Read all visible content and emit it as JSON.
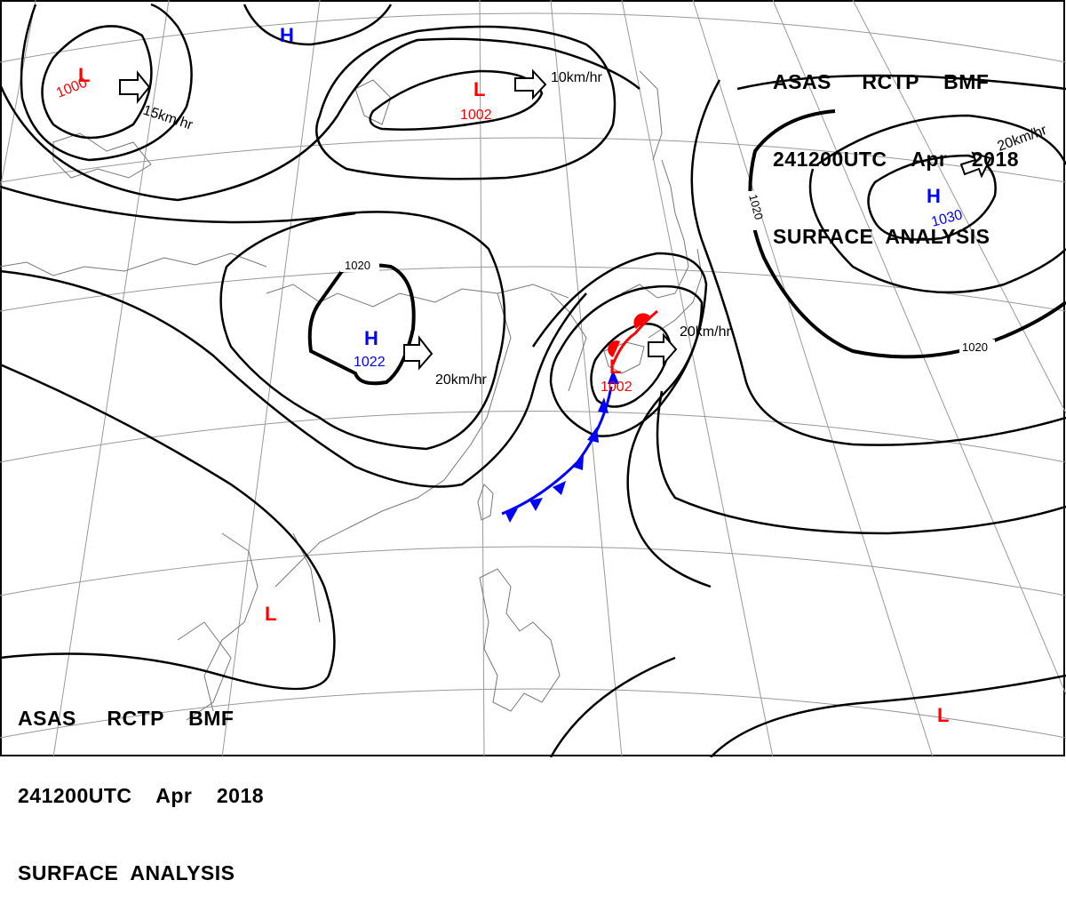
{
  "header_top": {
    "line1": "ASAS     RCTP    BMF",
    "line2": "241200UTC    Apr    2018",
    "line3": "SURFACE  ANALYSIS"
  },
  "header_bottom": {
    "line1": "ASAS     RCTP    BMF",
    "line2": "241200UTC    Apr    2018",
    "line3": "SURFACE  ANALYSIS"
  },
  "pressure_centers": [
    {
      "id": "low-nw",
      "type": "L",
      "value": "1000",
      "color": "#ff0000"
    },
    {
      "id": "low-north",
      "type": "L",
      "value": "1002",
      "color": "#ff0000"
    },
    {
      "id": "high-china",
      "type": "H",
      "value": "1022",
      "color": "#0000ff"
    },
    {
      "id": "low-japan",
      "type": "L",
      "value": "1002",
      "color": "#ff0000"
    },
    {
      "id": "high-pacific",
      "type": "H",
      "value": "1030",
      "color": "#0000ff"
    },
    {
      "id": "high-top",
      "type": "H",
      "value": "",
      "color": "#0000ff"
    },
    {
      "id": "low-indochina",
      "type": "L",
      "value": "",
      "color": "#ff0000"
    },
    {
      "id": "low-se",
      "type": "L",
      "value": "",
      "color": "#ff0000"
    }
  ],
  "motion_labels": {
    "low_nw": "15km/hr",
    "low_north": "10km/hr",
    "high_china": "20km/hr",
    "low_japan": "20km/hr",
    "high_pacific": "20km/hr"
  },
  "isobar_labels": {
    "china_inner": "1020",
    "pacific_west": "1020",
    "pacific_south": "1020"
  },
  "colors": {
    "warm_front": "#ff0000",
    "cold_front": "#0000ff",
    "isobar": "#000000",
    "grid": "#999999"
  }
}
